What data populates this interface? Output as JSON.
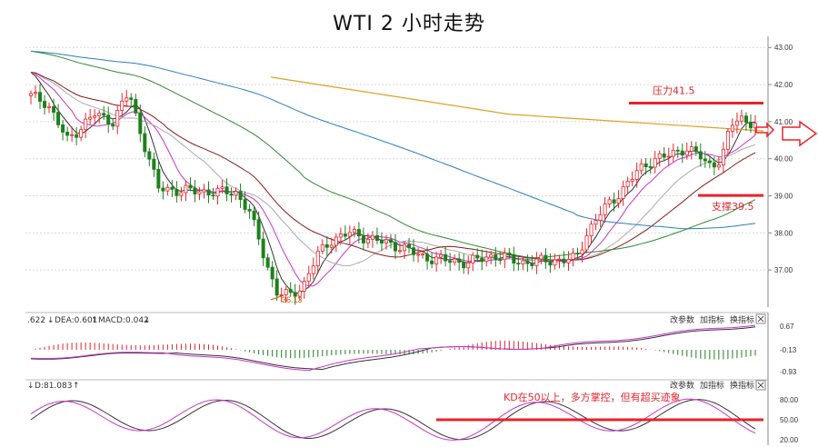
{
  "title": "WTI 2 小时走势",
  "colors": {
    "up": "#e8232a",
    "down": "#1e7f1e",
    "annotation": "#e8232a",
    "grid": "#d9d9d9"
  },
  "chart_data": [
    {
      "type": "candlestick",
      "title": "WTI 2 小时走势",
      "ylim": [
        36.0,
        43.3
      ],
      "yticks": [
        "43.00",
        "42.00",
        "41.00",
        "40.00",
        "39.00",
        "38.00",
        "37.00"
      ],
      "low_label": "36.13",
      "annotations": {
        "resistance": "压力41.5",
        "support": "支撑39.5"
      },
      "resistance_value": 41.5,
      "support_value": 39.5,
      "overlay_lines": [
        "orange",
        "blue",
        "green",
        "dark-red",
        "purple",
        "magenta",
        "black"
      ]
    },
    {
      "type": "line",
      "name": "MACD",
      "header": {
        "left": ".622",
        "dea": "DEA:0.601",
        "macd": "MACD:0.042"
      },
      "yticks": [
        "0.67",
        "-0.13",
        "-0.93"
      ],
      "buttons": [
        "改参数",
        "加指标",
        "换指标"
      ]
    },
    {
      "type": "line",
      "name": "KD",
      "header": {
        "d": "D:81.083"
      },
      "yticks": [
        "80.00",
        "50.00",
        "20.00"
      ],
      "buttons": [
        "改参数",
        "加指标",
        "换指标"
      ],
      "annotation": "KD在50以上，多方掌控，但有超买迹象",
      "level": 50
    }
  ]
}
